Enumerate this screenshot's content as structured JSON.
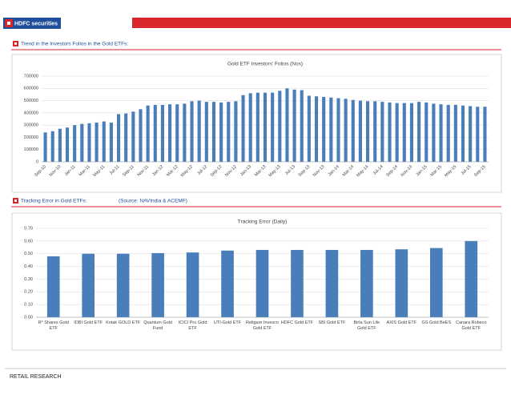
{
  "header": {
    "logo": "HDFC securities"
  },
  "sections": [
    {
      "heading": "Trend in the Investors Folios in the Gold ETFs:"
    },
    {
      "heading": "Tracking Error in Gold ETFs:",
      "source": "(Source: NAVIndia & ACEMF)"
    }
  ],
  "footer": "RETAIL RESEARCH",
  "chart_data": [
    {
      "type": "bar",
      "title": "Gold ETF Investors' Folios (Nos)",
      "color": "#4a7ebb",
      "grid": true,
      "categories": [
        "Sep-10",
        null,
        "Nov-10",
        null,
        "Jan-11",
        null,
        "Mar-11",
        null,
        "May-11",
        null,
        "Jul-11",
        null,
        "Sep-11",
        null,
        "Nov-11",
        null,
        "Jan-12",
        null,
        "Mar-12",
        null,
        "May-12",
        null,
        "Jul-12",
        null,
        "Sep-12",
        null,
        "Nov-12",
        null,
        "Jan-13",
        null,
        "Mar-13",
        null,
        "May-13",
        null,
        "Jul-13",
        null,
        "Sep-13",
        null,
        "Nov-13",
        null,
        "Jan-14",
        null,
        "Mar-14",
        null,
        "May-14",
        null,
        "Jul-14",
        null,
        "Sep-14",
        null,
        "Nov-14",
        null,
        "Jan-15",
        null,
        "Mar-15",
        null,
        "May-15",
        null,
        "Jul-15",
        null,
        "Sep-15"
      ],
      "values": [
        240000,
        250000,
        270000,
        280000,
        300000,
        310000,
        315000,
        320000,
        330000,
        320000,
        390000,
        395000,
        410000,
        430000,
        460000,
        465000,
        465000,
        470000,
        470000,
        475000,
        495000,
        500000,
        490000,
        490000,
        485000,
        490000,
        495000,
        545000,
        560000,
        565000,
        565000,
        565000,
        580000,
        600000,
        590000,
        585000,
        540000,
        535000,
        530000,
        525000,
        520000,
        515000,
        505000,
        500000,
        495000,
        495000,
        490000,
        485000,
        480000,
        480000,
        480000,
        490000,
        485000,
        475000,
        470000,
        465000,
        465000,
        460000,
        455000,
        450000,
        450000
      ],
      "ylim": [
        0,
        700000
      ],
      "yticks": [
        0,
        100000,
        200000,
        300000,
        400000,
        500000,
        600000,
        700000
      ]
    },
    {
      "type": "bar",
      "title": "Tracking Error (Daily)",
      "color": "#4a7ebb",
      "grid": true,
      "categories": [
        "R* Shares Gold ETF",
        "IDBI Gold ETF",
        "Kotak GOLD ETF",
        "Quantum Gold Fund",
        "ICICI Pru Gold ETF",
        "UTI-Gold ETF",
        "Religare Invesco Gold ETF",
        "HDFC Gold ETF",
        "SBI Gold ETF",
        "Birla Sun Life Gold ETF",
        "AXIS Gold ETF",
        "GS Gold BeES",
        "Canara Robeco Gold ETF"
      ],
      "values": [
        0.48,
        0.5,
        0.5,
        0.505,
        0.51,
        0.525,
        0.53,
        0.53,
        0.53,
        0.53,
        0.535,
        0.545,
        0.6
      ],
      "ylim": [
        0,
        0.7
      ],
      "yticks": [
        {
          "value": 0,
          "label": "0.00"
        },
        {
          "value": 0.1,
          "label": "0.10"
        },
        {
          "value": 0.2,
          "label": "0.20"
        },
        {
          "value": 0.3,
          "label": "0.30"
        },
        {
          "value": 0.4,
          "label": "0.40"
        },
        {
          "value": 0.5,
          "label": "0.50"
        },
        {
          "value": 0.6,
          "label": "0.60"
        },
        {
          "value": 0.7,
          "label": "0.70"
        }
      ]
    }
  ]
}
